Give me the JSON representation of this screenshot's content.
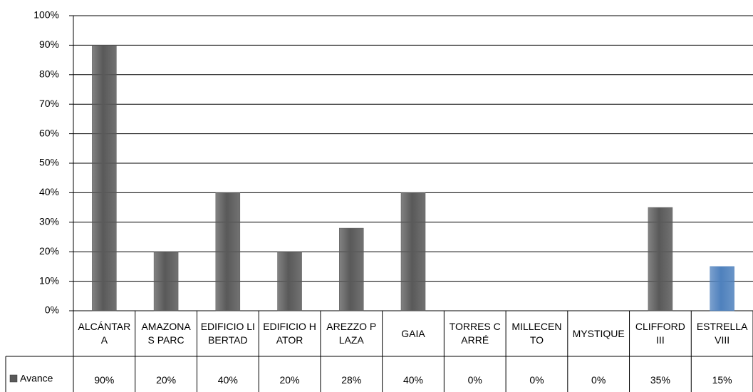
{
  "chart_data": {
    "type": "bar",
    "categories": [
      "ALCÁNTARA",
      "AMAZONAS PARC",
      "EDIFICIO LIBERTAD",
      "EDIFICIO HATOR",
      "AREZZO PLAZA",
      "GAIA",
      "TORRES CARRÉ",
      "MILLECENTO",
      "MYSTIQUE",
      "CLIFFORD III",
      "ESTRELLA VIII"
    ],
    "series": [
      {
        "name": "Avance",
        "color": "#595959",
        "values": [
          90,
          20,
          40,
          20,
          28,
          40,
          0,
          0,
          0,
          35,
          15
        ],
        "value_labels": [
          "90%",
          "20%",
          "40%",
          "20%",
          "28%",
          "40%",
          "0%",
          "0%",
          "0%",
          "35%",
          "15%"
        ],
        "colors": [
          "#595959",
          "#595959",
          "#595959",
          "#595959",
          "#595959",
          "#595959",
          "#595959",
          "#595959",
          "#595959",
          "#595959",
          "#4f81bd"
        ]
      }
    ],
    "ylim": [
      0,
      100
    ],
    "yticks": [
      {
        "value": 0,
        "label": "0%"
      },
      {
        "value": 10,
        "label": "10%"
      },
      {
        "value": 20,
        "label": "20%"
      },
      {
        "value": 30,
        "label": "30%"
      },
      {
        "value": 40,
        "label": "40%"
      },
      {
        "value": 50,
        "label": "50%"
      },
      {
        "value": 60,
        "label": "60%"
      },
      {
        "value": 70,
        "label": "70%"
      },
      {
        "value": 80,
        "label": "80%"
      },
      {
        "value": 90,
        "label": "90%"
      },
      {
        "value": 100,
        "label": "100%"
      }
    ],
    "grid": true
  }
}
